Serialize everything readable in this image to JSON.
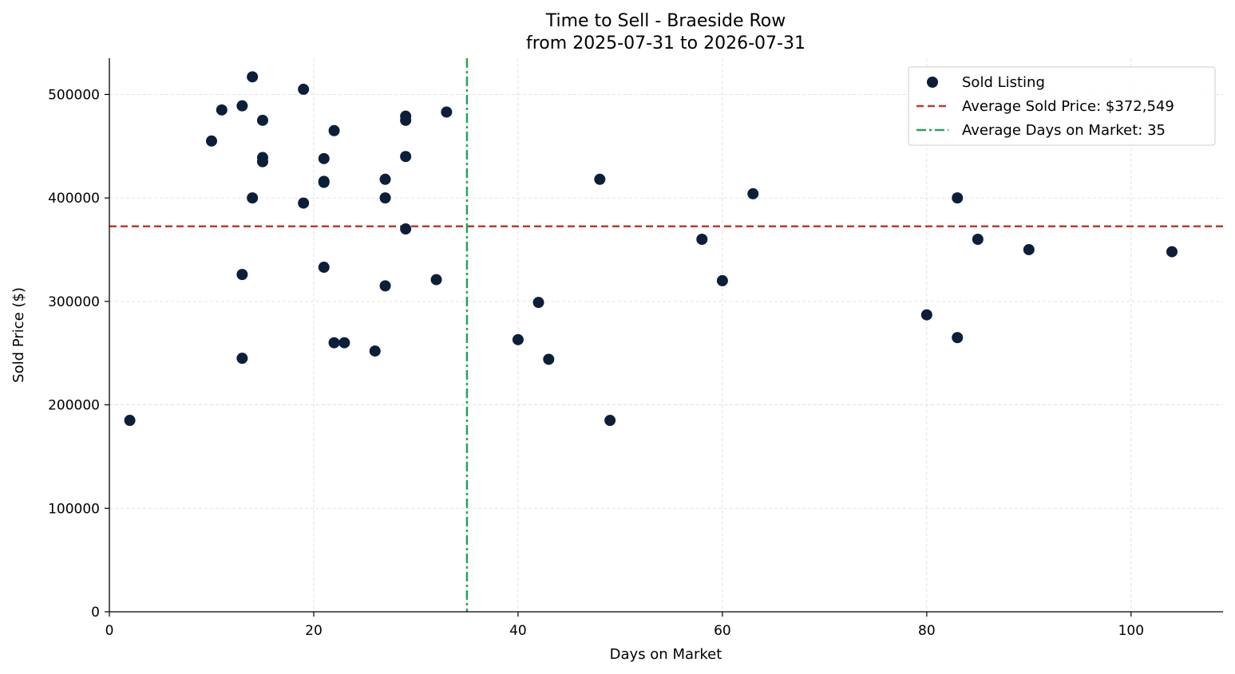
{
  "chart_data": {
    "type": "scatter",
    "title": "Time to Sell - Braeside Row",
    "subtitle": "from 2025-07-31 to 2026-07-31",
    "xlabel": "Days on Market",
    "ylabel": "Sold Price ($)",
    "xlim": [
      0,
      109
    ],
    "ylim": [
      0,
      535000
    ],
    "xticks": [
      0,
      20,
      40,
      60,
      80,
      100
    ],
    "yticks": [
      0,
      100000,
      200000,
      300000,
      400000,
      500000
    ],
    "grid": true,
    "legend_position": "top-right",
    "colors": {
      "points": "#0b1f3a",
      "avg_price_line": "#c0392b",
      "avg_days_line": "#27a35a",
      "grid": "#d9d9d9"
    },
    "series": [
      {
        "name": "Sold Listing",
        "points": [
          [
            2,
            185000
          ],
          [
            10,
            455000
          ],
          [
            11,
            485000
          ],
          [
            13,
            489000
          ],
          [
            13,
            326000
          ],
          [
            13,
            245000
          ],
          [
            14,
            517000
          ],
          [
            14,
            400000
          ],
          [
            15,
            475000
          ],
          [
            15,
            439000
          ],
          [
            15,
            435000
          ],
          [
            19,
            505000
          ],
          [
            19,
            395000
          ],
          [
            21,
            438000
          ],
          [
            21,
            415000
          ],
          [
            21,
            416000
          ],
          [
            21,
            333000
          ],
          [
            22,
            465000
          ],
          [
            22,
            260000
          ],
          [
            23,
            260000
          ],
          [
            26,
            252000
          ],
          [
            27,
            418000
          ],
          [
            27,
            400000
          ],
          [
            27,
            315000
          ],
          [
            29,
            479000
          ],
          [
            29,
            475000
          ],
          [
            29,
            440000
          ],
          [
            29,
            370000
          ],
          [
            32,
            321000
          ],
          [
            33,
            483000
          ],
          [
            40,
            263000
          ],
          [
            42,
            299000
          ],
          [
            43,
            244000
          ],
          [
            48,
            418000
          ],
          [
            49,
            185000
          ],
          [
            58,
            360000
          ],
          [
            60,
            320000
          ],
          [
            63,
            404000
          ],
          [
            80,
            287000
          ],
          [
            83,
            400000
          ],
          [
            83,
            265000
          ],
          [
            85,
            360000
          ],
          [
            90,
            350000
          ],
          [
            104,
            348000
          ]
        ]
      }
    ],
    "reference_lines": [
      {
        "name": "Average Sold Price: $372,549",
        "orientation": "horizontal",
        "value": 372549,
        "style": "dashed"
      },
      {
        "name": "Average Days on Market: 35",
        "orientation": "vertical",
        "value": 35,
        "style": "dashdot"
      }
    ]
  }
}
